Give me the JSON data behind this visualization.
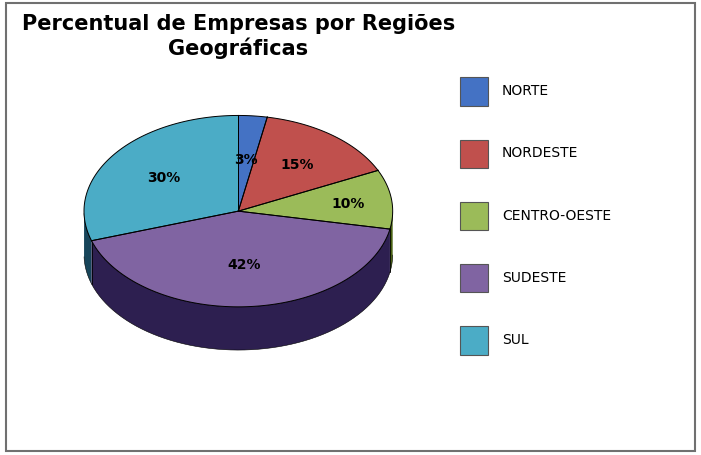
{
  "title": "Percentual de Empresas por Regiões\nGeográficas",
  "title_fontsize": 15,
  "labels": [
    "NORTE",
    "NORDESTE",
    "CENTRO-OESTE",
    "SUDESTE",
    "SUL"
  ],
  "values": [
    3,
    15,
    10,
    42,
    30
  ],
  "colors": [
    "#4472C4",
    "#C0504D",
    "#9BBB59",
    "#8064A2",
    "#4BACC6"
  ],
  "dark_colors": [
    "#17375E",
    "#7B1414",
    "#4A6215",
    "#2D1F50",
    "#17455A"
  ],
  "pct_labels": [
    "3%",
    "15%",
    "10%",
    "42%",
    "30%"
  ],
  "legend_labels": [
    "NORTE",
    "NORDESTE",
    "CENTRO-OESTE",
    "SUDESTE",
    "SUL"
  ],
  "background_color": "#FFFFFF",
  "border_color": "#808080",
  "label_radii": [
    0.55,
    0.62,
    0.72,
    0.55,
    0.6
  ]
}
